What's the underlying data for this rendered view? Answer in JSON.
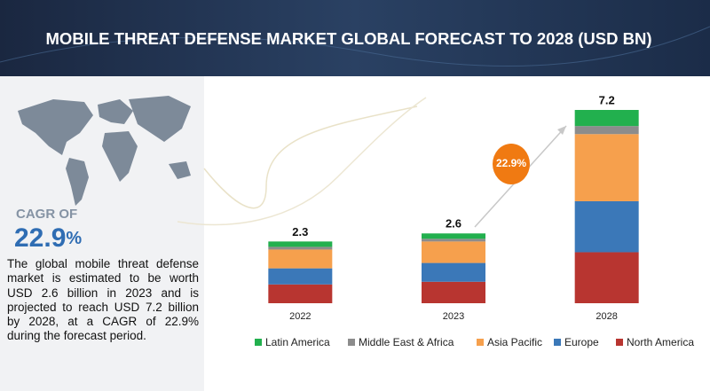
{
  "chart_data": {
    "type": "stacked_bar",
    "title": "MOBILE THREAT DEFENSE MARKET GLOBAL FORECAST TO 2028 (USD BN)",
    "categories": [
      "2022",
      "2023",
      "2028"
    ],
    "series": [
      {
        "name": "Latin America",
        "color": "#22b04e",
        "values": [
          0.2,
          0.2,
          0.6
        ]
      },
      {
        "name": "Middle East & Africa",
        "color": "#8c8c8c",
        "values": [
          0.1,
          0.1,
          0.3
        ]
      },
      {
        "name": "Asia Pacific",
        "color": "#f6a04d",
        "values": [
          0.7,
          0.8,
          2.5
        ]
      },
      {
        "name": "Europe",
        "color": "#3b78b8",
        "values": [
          0.6,
          0.7,
          1.9
        ]
      },
      {
        "name": "North America",
        "color": "#b83530",
        "values": [
          0.7,
          0.8,
          1.9
        ]
      }
    ],
    "totals": [
      2.3,
      2.6,
      7.2
    ],
    "annotation": "22.9%",
    "sidebar": {
      "cagr_label": "CAGR OF",
      "cagr_number": "22.9",
      "cagr_unit": "%",
      "description": "The global mobile threat defense market is estimated to be worth USD 2.6 billion in 2023 and is projected to reach USD 7.2 billion by 2028, at a CAGR of 22.9% during the forecast period."
    }
  }
}
